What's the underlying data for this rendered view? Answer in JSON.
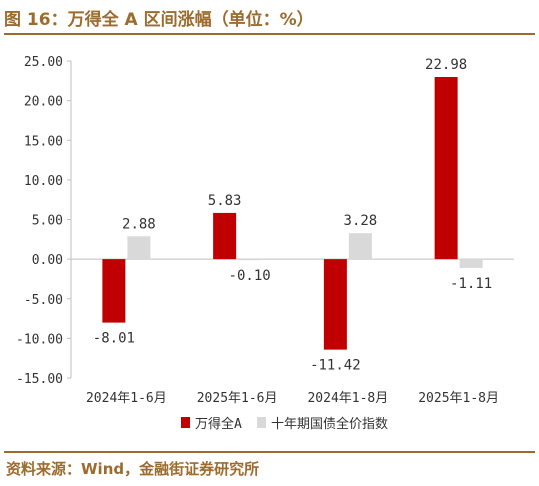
{
  "figure": {
    "title": "图 16：万得全 A 区间涨幅（单位：%）",
    "source": "资料来源：Wind，金融街证券研究所"
  },
  "colors": {
    "accent": "#9C6B2E",
    "series_a": "#C00000",
    "series_b": "#D9D9D9",
    "axis": "#BFBFBF",
    "text": "#333333"
  },
  "chart_data": {
    "type": "bar",
    "title": "",
    "xlabel": "",
    "ylabel": "",
    "categories": [
      "2024年1-6月",
      "2025年1-6月",
      "2024年1-8月",
      "2025年1-8月"
    ],
    "series": [
      {
        "name": "万得全A",
        "values": [
          -8.01,
          5.83,
          -11.42,
          22.98
        ],
        "labels": [
          "-8.01",
          "5.83",
          "-11.42",
          "22.98"
        ]
      },
      {
        "name": "十年期国债全价指数",
        "values": [
          2.88,
          -0.1,
          3.28,
          -1.11
        ],
        "labels": [
          "2.88",
          "-0.10",
          "3.28",
          "-1.11"
        ]
      }
    ],
    "ylim": [
      -15,
      25
    ],
    "yticks": [
      "-15.00",
      "-10.00",
      "-5.00",
      "0.00",
      "5.00",
      "10.00",
      "15.00",
      "20.00",
      "25.00"
    ],
    "grid": false,
    "legend_position": "bottom"
  }
}
